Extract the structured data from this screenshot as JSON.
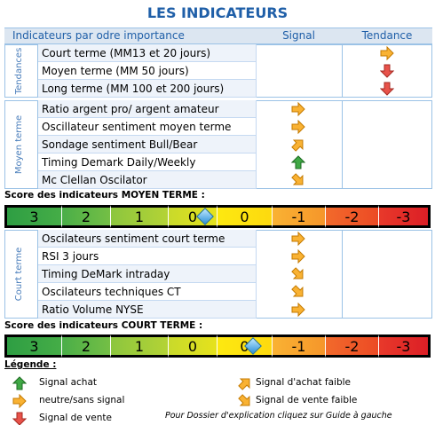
{
  "title": "LES INDICATEURS",
  "header": [
    "Indicateurs par odre importance",
    "Signal",
    "Tendance"
  ],
  "sections": [
    {
      "label": "Tendances",
      "rows": [
        "Court terme (MM13 et 20 jours)",
        "Moyen terme (MM 50 jours)",
        "Long terme (MM 100 et 200 jours)"
      ]
    },
    {
      "label": "Moyen terme",
      "rows": [
        "Ratio argent pro/ argent amateur",
        "Oscillateur sentiment moyen terme",
        "Sondage sentiment Bull/Bear",
        "Timing Demark Daily/Weekly",
        "Mc Clellan Oscilator"
      ]
    },
    {
      "label": "Court terme",
      "rows": [
        "Oscilateurs sentiment court terme",
        "RSI 3 jours",
        "Timing DeMark intraday",
        "Oscilateurs techniques CT",
        "Ratio Volume NYSE"
      ]
    }
  ],
  "scores": [
    {
      "title": "Score des indicateurs MOYEN TERME :",
      "scale": [
        3,
        2,
        1,
        0,
        0,
        -1,
        -2,
        -3
      ]
    },
    {
      "title": "Score des indicateurs COURT TERME :",
      "scale": [
        3,
        2,
        1,
        0,
        0,
        -1,
        -2,
        -3
      ]
    }
  ],
  "legend": {
    "title": "Légende :",
    "items": [
      "Signal achat",
      "neutre/sans signal",
      "Signal de vente",
      "Signal d'achat faible",
      "Signal de vente faible"
    ]
  },
  "footer": "Pour Dossier d'explication cliquez sur Guide à gauche"
}
